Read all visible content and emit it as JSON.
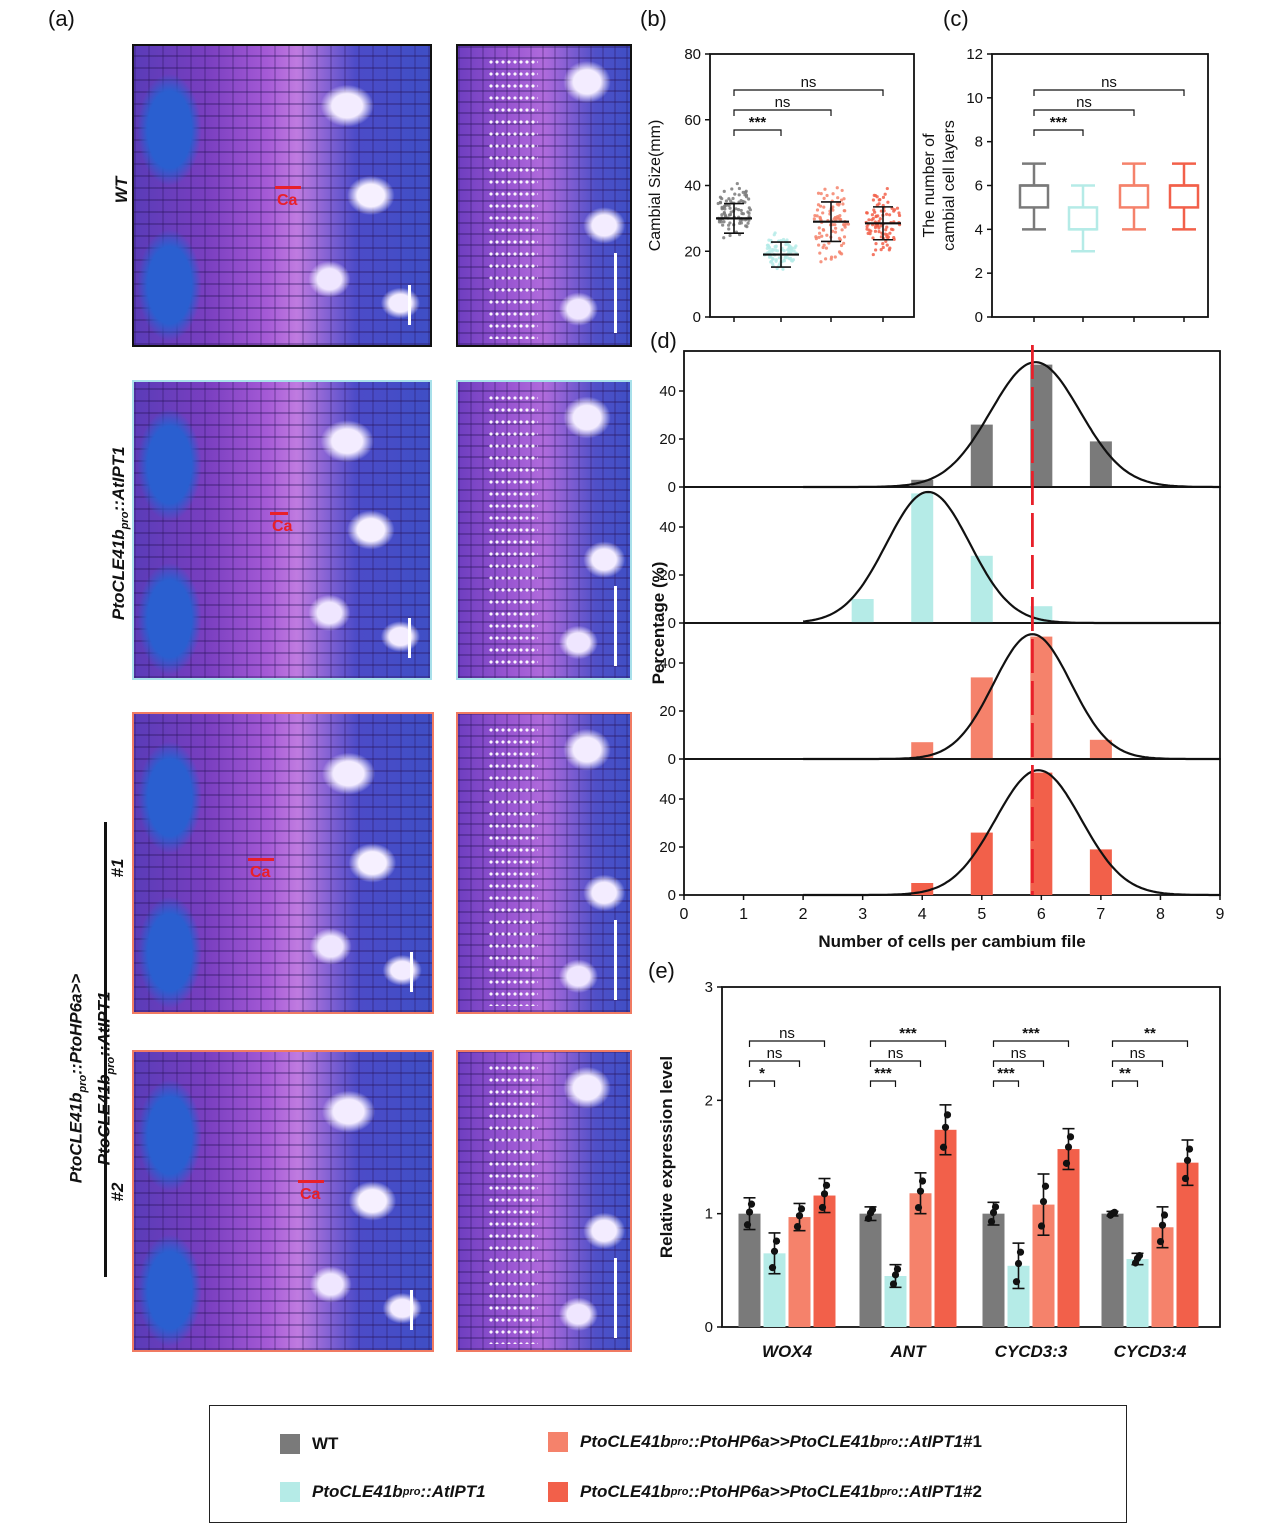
{
  "panel_labels": {
    "a": "(a)",
    "b": "(b)",
    "c": "(c)",
    "d": "(d)",
    "e": "(e)"
  },
  "colors": {
    "wt": "#7a7a7a",
    "ipt": "#b5ebe7",
    "hp1": "#f5826b",
    "hp2": "#f2604a",
    "sig": "#e8202a"
  },
  "panel_a": {
    "row_labels": {
      "wt": "WT",
      "ipt_main": "PtoCLE41b",
      "ipt_sub": "pro",
      "ipt_tail": "::AtIPT1",
      "hp_line1": "PtoCLE41b",
      "hp_line1_sub": "pro",
      "hp_line1_mid": "::PtoHP6a>>",
      "hp_line2": "PtoCLE41b",
      "hp_line2_sub": "pro",
      "hp_line2_tail": "::AtIPT1",
      "line1": "#1",
      "line2": "#2"
    },
    "ca_label": "Ca"
  },
  "chart_data": [
    {
      "id": "b",
      "type": "scatter",
      "ylabel": "Cambial Size(mm)",
      "ylim": [
        0,
        80
      ],
      "yticks": [
        0,
        20,
        40,
        60,
        80
      ],
      "groups": [
        "WT",
        "PtoCLE41bpro::AtIPT1",
        "#1",
        "#2"
      ],
      "mean": [
        30,
        19,
        29,
        28.5
      ],
      "sd": [
        4.5,
        3.8,
        6,
        5
      ],
      "spread": [
        [
          22,
          44
        ],
        [
          13,
          27
        ],
        [
          13,
          44
        ],
        [
          17,
          42
        ]
      ],
      "significance": [
        {
          "from": 0,
          "to": 1,
          "label": "***"
        },
        {
          "from": 0,
          "to": 2,
          "label": "ns"
        },
        {
          "from": 0,
          "to": 3,
          "label": "ns"
        }
      ]
    },
    {
      "id": "c",
      "type": "box",
      "ylabel": "The number of\ncambial cell layers",
      "ylim": [
        0,
        12
      ],
      "yticks": [
        0,
        2,
        4,
        6,
        8,
        10,
        12
      ],
      "groups": [
        "WT",
        "PtoCLE41bpro::AtIPT1",
        "#1",
        "#2"
      ],
      "boxes": [
        {
          "min": 4,
          "q1": 5,
          "median": 6,
          "q3": 6,
          "max": 7
        },
        {
          "min": 3,
          "q1": 4,
          "median": 4,
          "q3": 5,
          "max": 6
        },
        {
          "min": 4,
          "q1": 5,
          "median": 6,
          "q3": 6,
          "max": 7
        },
        {
          "min": 4,
          "q1": 5,
          "median": 6,
          "q3": 6,
          "max": 7
        }
      ],
      "significance": [
        {
          "from": 0,
          "to": 1,
          "label": "***"
        },
        {
          "from": 0,
          "to": 2,
          "label": "ns"
        },
        {
          "from": 0,
          "to": 3,
          "label": "ns"
        }
      ]
    },
    {
      "id": "d",
      "type": "bar",
      "xlabel": "Number of cells per cambium file",
      "ylabel": "Percentage (%)",
      "xlim": [
        0,
        9
      ],
      "xticks": [
        0,
        1,
        2,
        3,
        4,
        5,
        6,
        7,
        8,
        9
      ],
      "ylim": [
        0,
        55
      ],
      "yticks": [
        0,
        20,
        40
      ],
      "reference_x": 5.85,
      "series": [
        {
          "bars": [
            {
              "x": 4,
              "y": 3
            },
            {
              "x": 5,
              "y": 26
            },
            {
              "x": 6,
              "y": 51
            },
            {
              "x": 7,
              "y": 19
            }
          ],
          "fit_mean": 5.9,
          "fit_sd": 0.75
        },
        {
          "bars": [
            {
              "x": 3,
              "y": 10
            },
            {
              "x": 4,
              "y": 54
            },
            {
              "x": 5,
              "y": 28
            },
            {
              "x": 6,
              "y": 7
            }
          ],
          "fit_mean": 4.1,
          "fit_sd": 0.7
        },
        {
          "bars": [
            {
              "x": 4,
              "y": 7
            },
            {
              "x": 5,
              "y": 34
            },
            {
              "x": 6,
              "y": 51
            },
            {
              "x": 7,
              "y": 8
            }
          ],
          "fit_mean": 5.85,
          "fit_sd": 0.65
        },
        {
          "bars": [
            {
              "x": 4,
              "y": 5
            },
            {
              "x": 5,
              "y": 26
            },
            {
              "x": 6,
              "y": 51
            },
            {
              "x": 7,
              "y": 19
            }
          ],
          "fit_mean": 5.95,
          "fit_sd": 0.72
        }
      ]
    },
    {
      "id": "e",
      "type": "bar",
      "ylabel": "Relative expression level",
      "ylim": [
        0,
        3
      ],
      "yticks": [
        0,
        1,
        2,
        3
      ],
      "categories": [
        "WOX4",
        "ANT",
        "CYCD3:3",
        "CYCD3:4"
      ],
      "series": [
        {
          "values": [
            1.0,
            1.0,
            1.0,
            1.0
          ],
          "err": [
            0.14,
            0.06,
            0.1,
            0.02
          ]
        },
        {
          "values": [
            0.65,
            0.45,
            0.54,
            0.6
          ],
          "err": [
            0.18,
            0.1,
            0.2,
            0.05
          ]
        },
        {
          "values": [
            0.97,
            1.18,
            1.08,
            0.88
          ],
          "err": [
            0.12,
            0.18,
            0.27,
            0.18
          ]
        },
        {
          "values": [
            1.16,
            1.74,
            1.57,
            1.45
          ],
          "err": [
            0.15,
            0.22,
            0.18,
            0.2
          ]
        }
      ],
      "significance": [
        [
          "*",
          "ns",
          "ns"
        ],
        [
          "***",
          "ns",
          "***"
        ],
        [
          "***",
          "ns",
          "***"
        ],
        [
          "**",
          "ns",
          "**"
        ]
      ]
    }
  ],
  "legend": {
    "wt": "WT",
    "ipt_main": "PtoCLE41b",
    "ipt_sub": "pro",
    "ipt_tail": "::AtIPT1",
    "hp_a": "PtoCLE41b",
    "hp_sub": "pro",
    "hp_b": "::PtoHP6a>>PtoCLE41b",
    "hp_c": "::AtIPT1",
    "hp1_suffix": " #1",
    "hp2_suffix": " #2"
  }
}
